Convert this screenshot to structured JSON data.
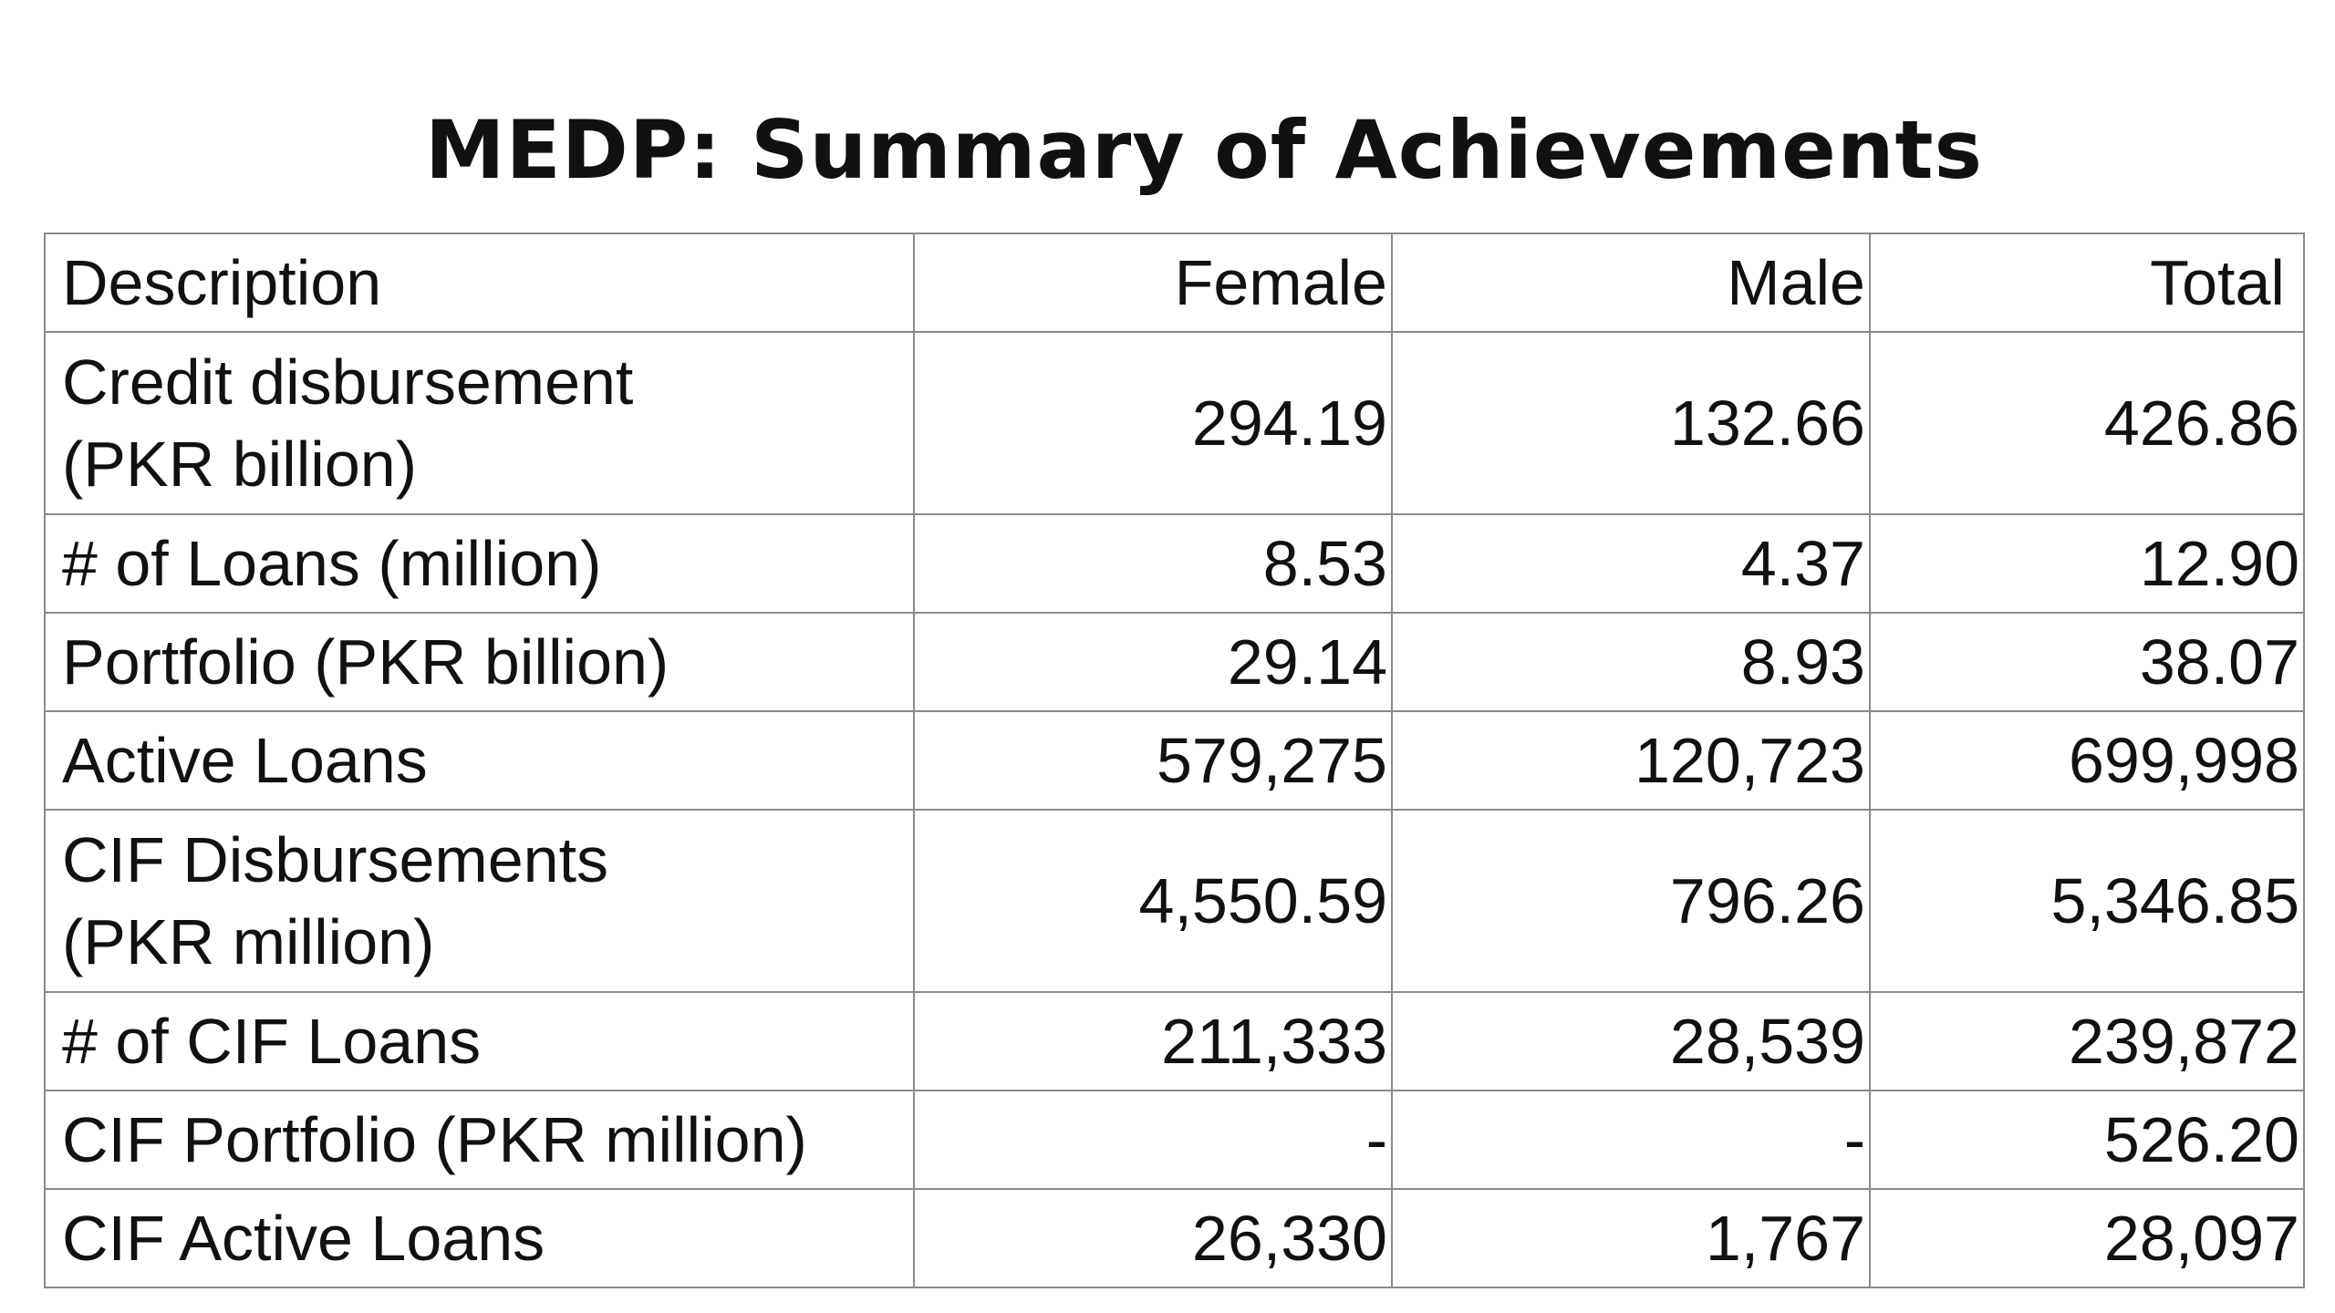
{
  "title": "MEDP: Summary of Achievements",
  "table": {
    "headers": {
      "description": "Description",
      "female": "Female",
      "male": "Male",
      "total": "Total"
    },
    "rows": [
      {
        "description": [
          "Credit disbursement",
          "(PKR billion)"
        ],
        "female": "294.19",
        "male": "132.66",
        "total": "426.86"
      },
      {
        "description": [
          "# of Loans (million)"
        ],
        "female": "8.53",
        "male": "4.37",
        "total": "12.90"
      },
      {
        "description": [
          "Portfolio (PKR billion)"
        ],
        "female": "29.14",
        "male": "8.93",
        "total": "38.07"
      },
      {
        "description": [
          "Active Loans"
        ],
        "female": "579,275",
        "male": "120,723",
        "total": "699,998"
      },
      {
        "description": [
          "CIF Disbursements",
          "(PKR million)"
        ],
        "female": "4,550.59",
        "male": "796.26",
        "total": "5,346.85"
      },
      {
        "description": [
          "# of CIF Loans"
        ],
        "female": "211,333",
        "male": "28,539",
        "total": "239,872"
      },
      {
        "description": [
          "CIF Portfolio (PKR million)"
        ],
        "female": "-",
        "male": "-",
        "total": "526.20"
      },
      {
        "description": [
          "CIF Active Loans"
        ],
        "female": "26,330",
        "male": "1,767",
        "total": "28,097"
      }
    ]
  }
}
